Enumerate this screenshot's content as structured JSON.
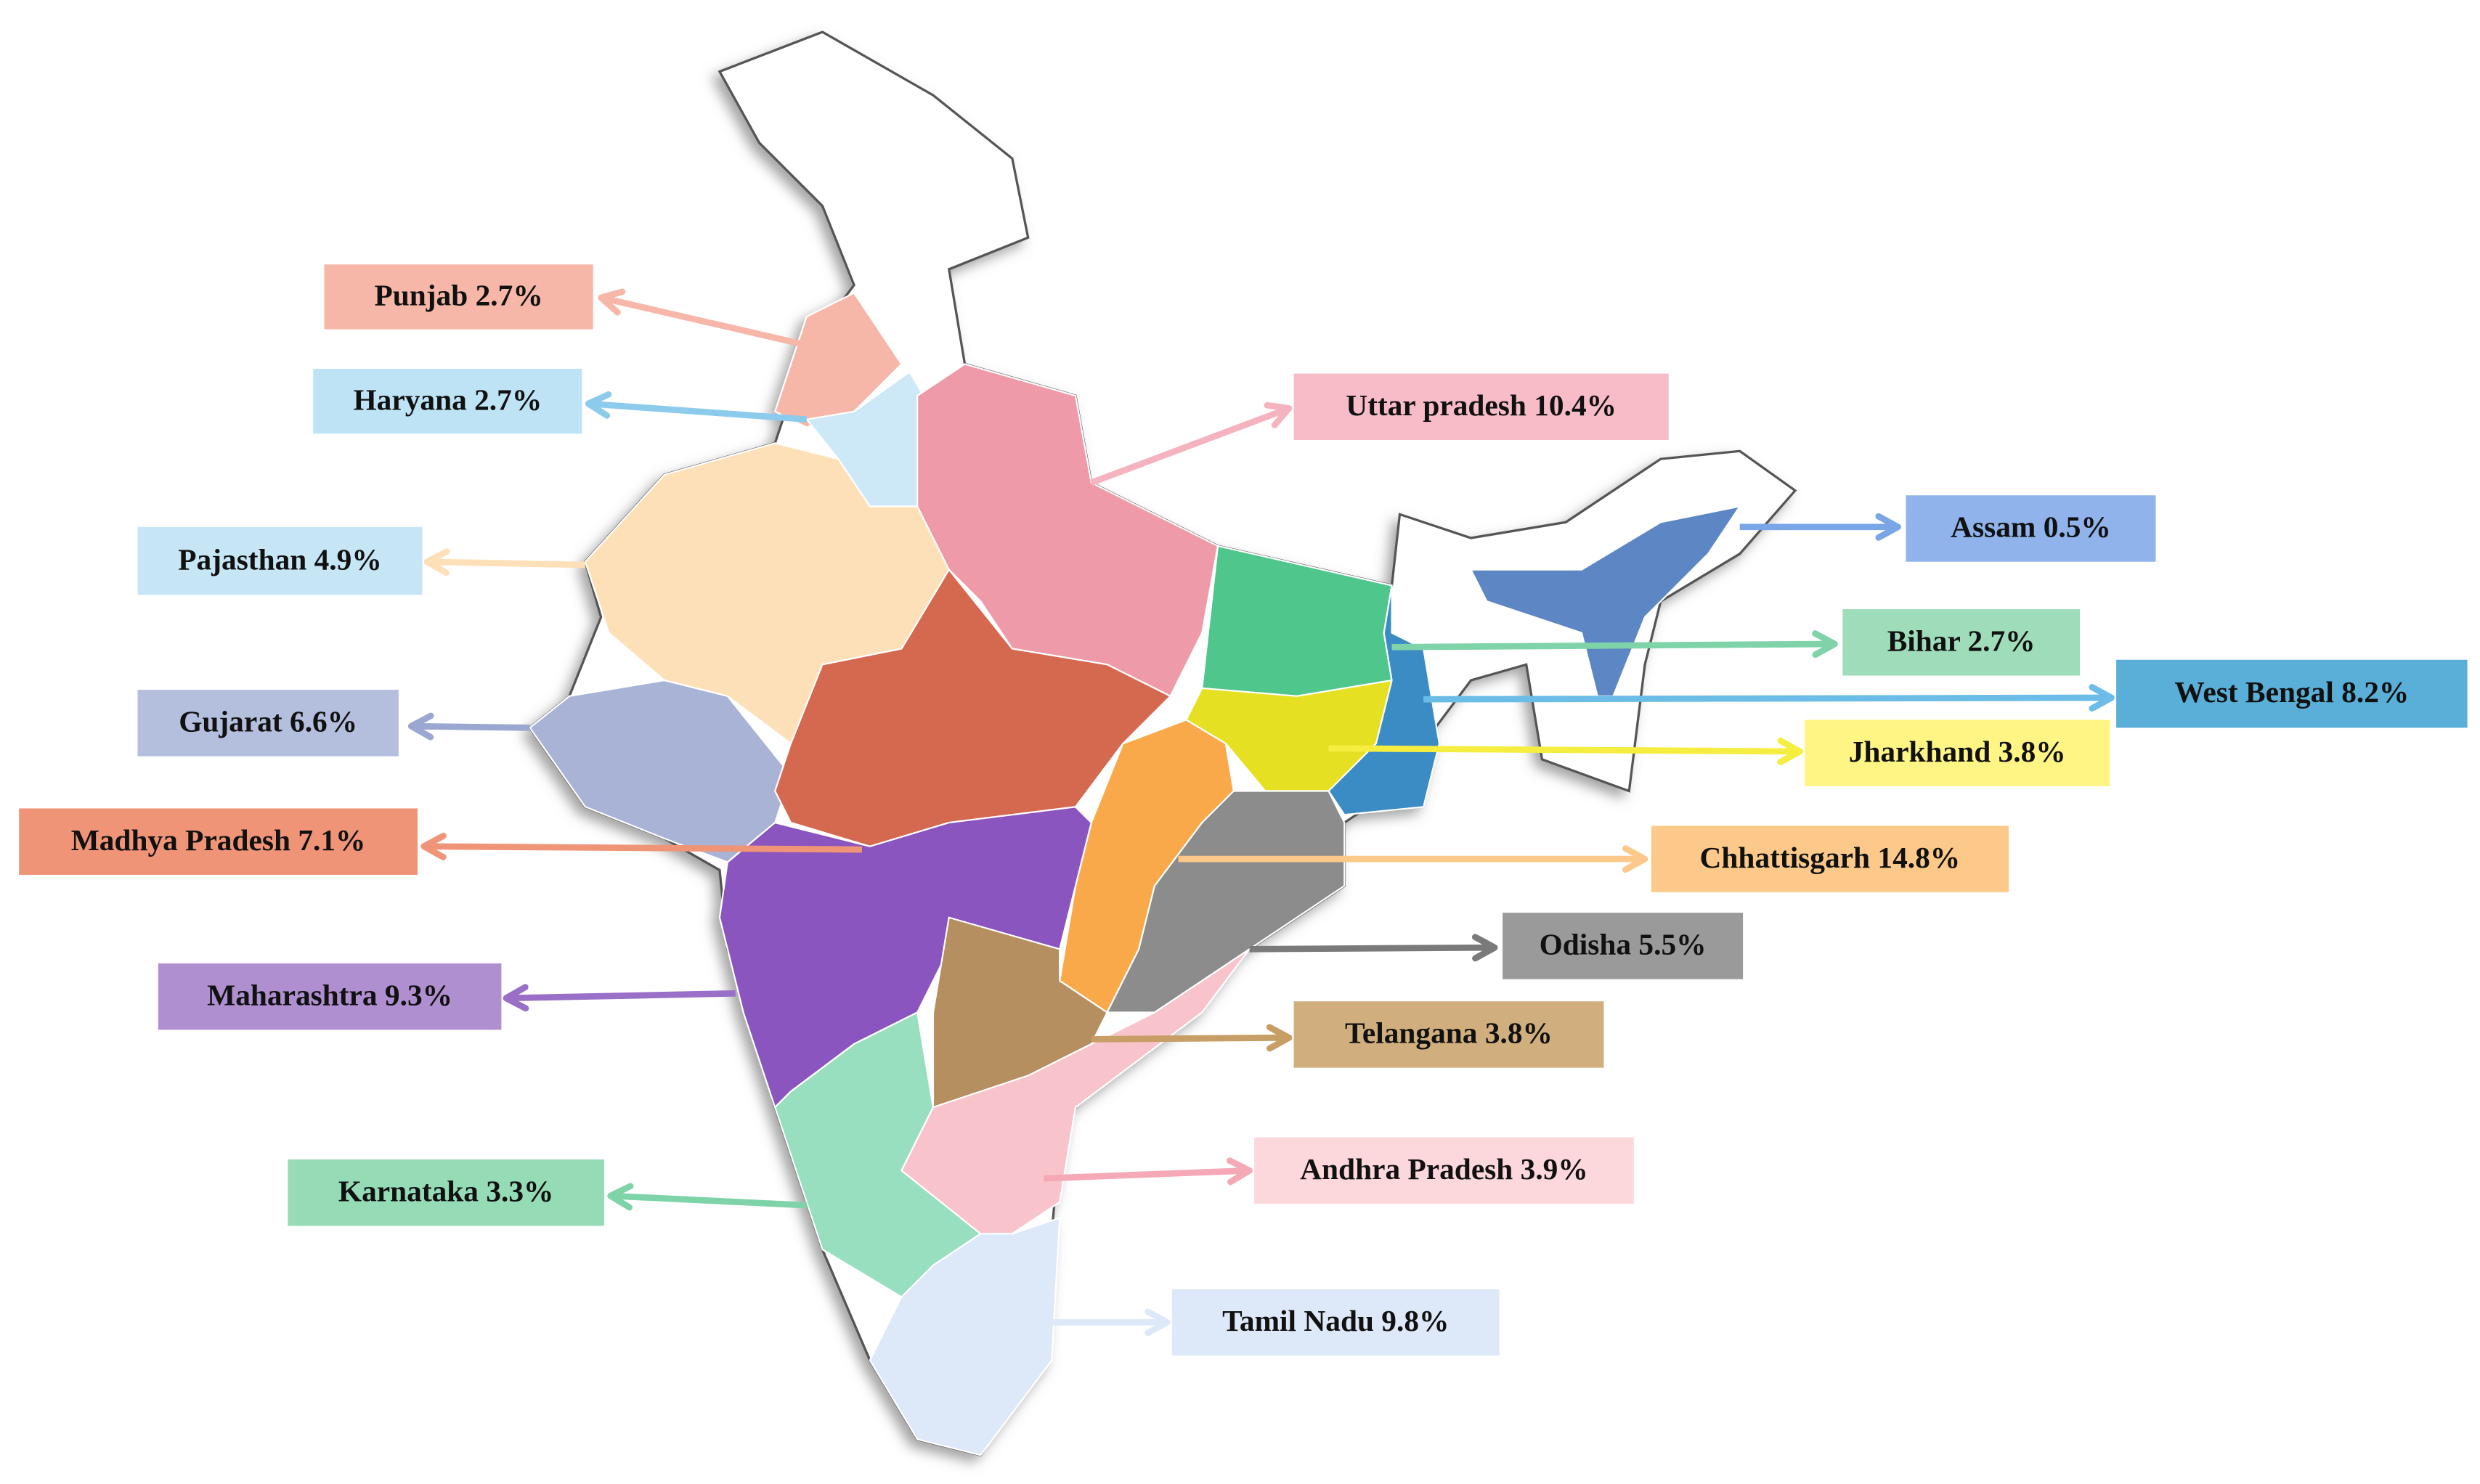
{
  "labels": [
    {
      "text": "Punjab 2.7%"
    },
    {
      "text": "Haryana 2.7%"
    },
    {
      "text": "Pajasthan 4.9%"
    },
    {
      "text": "Gujarat 6.6%"
    },
    {
      "text": "Madhya Pradesh 7.1%"
    },
    {
      "text": "Maharashtra 9.3%"
    },
    {
      "text": "Karnataka 3.3%"
    },
    {
      "text": "Uttar pradesh 10.4%"
    },
    {
      "text": "Assam 0.5%"
    },
    {
      "text": "Bihar 2.7%"
    },
    {
      "text": "West Bengal 8.2%"
    },
    {
      "text": "Jharkhand 3.8%"
    },
    {
      "text": "Chhattisgarh 14.8%"
    },
    {
      "text": "Odisha 5.5%"
    },
    {
      "text": "Telangana 3.8%"
    },
    {
      "text": "Andhra Pradesh 3.9%"
    },
    {
      "text": "Tamil Nadu 9.8%"
    }
  ]
}
